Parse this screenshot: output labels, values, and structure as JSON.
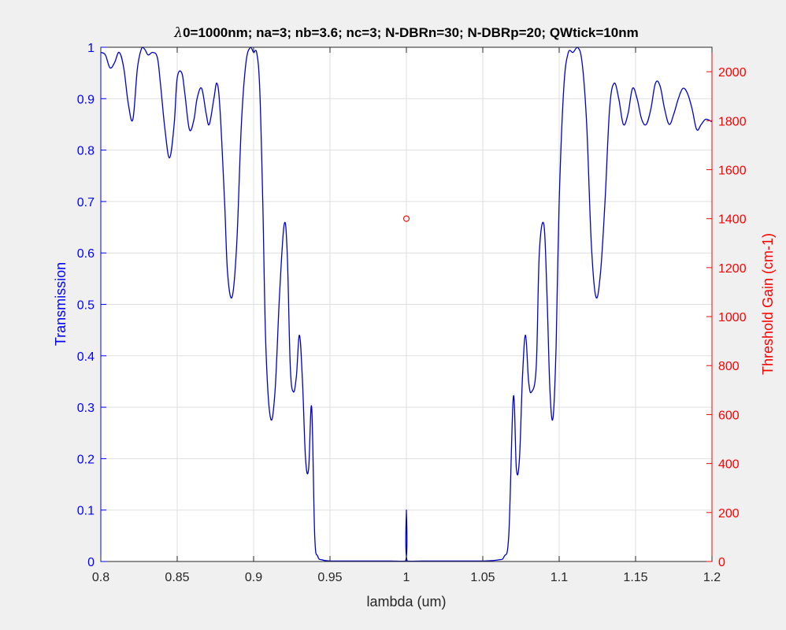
{
  "chart_data": {
    "type": "line",
    "title": "λ0=1000nm; na=3; nb=3.6; nc=3; N-DBRn=30; N-DBRp=20; QWtick=10nm",
    "title_lambda": "λ",
    "title_rest": "0=1000nm; na=3; nb=3.6; nc=3; N-DBRn=30; N-DBRp=20; QWtick=10nm",
    "xlabel": "lambda (um)",
    "ylabel_left": "Transmission",
    "ylabel_right": "Threshold Gain (cm-1)",
    "xlim": [
      0.8,
      1.2
    ],
    "ylim_left": [
      0,
      1
    ],
    "ylim_right": [
      0,
      2100
    ],
    "grid": true,
    "x_ticks": [
      "0.8",
      "0.85",
      "0.9",
      "0.95",
      "1",
      "1.05",
      "1.1",
      "1.15",
      "1.2"
    ],
    "y_ticks_left": [
      "0",
      "0.1",
      "0.2",
      "0.3",
      "0.4",
      "0.5",
      "0.6",
      "0.7",
      "0.8",
      "0.9",
      "1"
    ],
    "y_ticks_right": [
      "0",
      "200",
      "400",
      "600",
      "800",
      "1000",
      "1200",
      "1400",
      "1600",
      "1800",
      "2000"
    ],
    "colors": {
      "left_axis": "#0000ff",
      "right_axis": "#ff0000",
      "line": "#0000cc",
      "marker": "#ff0000",
      "grid": "#dfdfdf",
      "axes_bg": "#ffffff",
      "figure_bg": "#f0f0f0"
    },
    "series": [
      {
        "axis": "left",
        "style": "line",
        "x": [
          0.8,
          0.803,
          0.806,
          0.809,
          0.812,
          0.815,
          0.818,
          0.821,
          0.824,
          0.827,
          0.829,
          0.831,
          0.834,
          0.837,
          0.839,
          0.842,
          0.845,
          0.848,
          0.85,
          0.853,
          0.855,
          0.858,
          0.861,
          0.863,
          0.866,
          0.869,
          0.871,
          0.874,
          0.876,
          0.878,
          0.881,
          0.883,
          0.886,
          0.889,
          0.892,
          0.895,
          0.898,
          0.9,
          0.902,
          0.904,
          0.906,
          0.908,
          0.911,
          0.914,
          0.917,
          0.92,
          0.922,
          0.924,
          0.926,
          0.928,
          0.93,
          0.932,
          0.934,
          0.936,
          0.938,
          0.94,
          0.942,
          0.945,
          0.95,
          0.96,
          0.97,
          0.98,
          0.99,
          0.9995,
          1.0,
          1.0005,
          1.01,
          1.02,
          1.03,
          1.04,
          1.05,
          1.06,
          1.064,
          1.067,
          1.07,
          1.072,
          1.074,
          1.076,
          1.078,
          1.08,
          1.082,
          1.085,
          1.087,
          1.09,
          1.092,
          1.094,
          1.096,
          1.098,
          1.1,
          1.103,
          1.106,
          1.109,
          1.112,
          1.115,
          1.118,
          1.121,
          1.124,
          1.127,
          1.13,
          1.133,
          1.136,
          1.139,
          1.142,
          1.145,
          1.148,
          1.151,
          1.154,
          1.157,
          1.16,
          1.163,
          1.166,
          1.169,
          1.172,
          1.175,
          1.178,
          1.181,
          1.184,
          1.187,
          1.19,
          1.193,
          1.196,
          1.2
        ],
        "values": [
          0.99,
          0.985,
          0.96,
          0.97,
          0.99,
          0.96,
          0.89,
          0.86,
          0.96,
          1.0,
          0.995,
          0.985,
          0.99,
          0.98,
          0.93,
          0.84,
          0.785,
          0.85,
          0.94,
          0.95,
          0.91,
          0.84,
          0.86,
          0.9,
          0.92,
          0.87,
          0.85,
          0.9,
          0.93,
          0.88,
          0.7,
          0.56,
          0.515,
          0.62,
          0.85,
          0.97,
          1.0,
          0.99,
          0.99,
          0.92,
          0.7,
          0.42,
          0.28,
          0.33,
          0.52,
          0.655,
          0.6,
          0.38,
          0.33,
          0.36,
          0.44,
          0.35,
          0.2,
          0.18,
          0.3,
          0.05,
          0.01,
          0.003,
          0.001,
          0.001,
          0.001,
          0.001,
          0.001,
          0.001,
          0.1,
          0.001,
          0.001,
          0.001,
          0.001,
          0.001,
          0.001,
          0.003,
          0.01,
          0.05,
          0.32,
          0.18,
          0.2,
          0.36,
          0.44,
          0.35,
          0.33,
          0.38,
          0.6,
          0.655,
          0.52,
          0.33,
          0.28,
          0.42,
          0.7,
          0.92,
          0.99,
          0.99,
          1.0,
          0.97,
          0.85,
          0.62,
          0.515,
          0.56,
          0.7,
          0.88,
          0.93,
          0.9,
          0.85,
          0.87,
          0.92,
          0.9,
          0.86,
          0.85,
          0.88,
          0.93,
          0.925,
          0.88,
          0.85,
          0.87,
          0.9,
          0.92,
          0.91,
          0.88,
          0.84,
          0.85,
          0.86,
          0.855
        ]
      },
      {
        "axis": "right",
        "style": "marker",
        "x": [
          1.0
        ],
        "values": [
          1400
        ]
      }
    ]
  }
}
